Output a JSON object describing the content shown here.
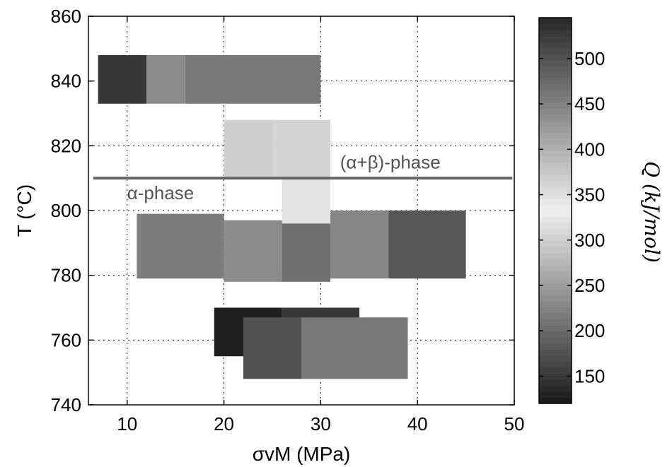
{
  "chart_data": {
    "type": "heatmap",
    "title": "",
    "xlabel": "σvM (MPa)",
    "ylabel": "T (°C)",
    "xlim": [
      6,
      50
    ],
    "ylim": [
      740,
      860
    ],
    "xticks": [
      10,
      20,
      30,
      40,
      50
    ],
    "yticks": [
      740,
      760,
      780,
      800,
      820,
      840,
      860
    ],
    "grid": true,
    "colorbar": {
      "label": "Q (kJ/mol)",
      "range": [
        120,
        545
      ],
      "ticks": [
        150,
        200,
        250,
        300,
        350,
        400,
        450,
        500
      ],
      "colormap": "grayscale"
    },
    "cells": [
      {
        "x0": 7,
        "x1": 12,
        "y0": 833,
        "y1": 848,
        "Q": 150
      },
      {
        "x0": 12,
        "x1": 16,
        "y0": 833,
        "y1": 848,
        "Q": 440
      },
      {
        "x0": 16,
        "x1": 30,
        "y0": 833,
        "y1": 848,
        "Q": 460
      },
      {
        "x0": 20,
        "x1": 25,
        "y0": 810,
        "y1": 828,
        "Q": 300
      },
      {
        "x0": 25,
        "x1": 31,
        "y0": 810,
        "y1": 828,
        "Q": 305
      },
      {
        "x0": 26,
        "x1": 31,
        "y0": 796,
        "y1": 810,
        "Q": 320
      },
      {
        "x0": 11,
        "x1": 20,
        "y0": 779,
        "y1": 799,
        "Q": 455
      },
      {
        "x0": 20,
        "x1": 26,
        "y0": 778,
        "y1": 797,
        "Q": 440
      },
      {
        "x0": 26,
        "x1": 31,
        "y0": 778,
        "y1": 796,
        "Q": 470
      },
      {
        "x0": 31,
        "x1": 37,
        "y0": 779,
        "y1": 800,
        "Q": 445
      },
      {
        "x0": 37,
        "x1": 45,
        "y0": 779,
        "y1": 800,
        "Q": 180
      },
      {
        "x0": 19,
        "x1": 26,
        "y0": 755,
        "y1": 770,
        "Q": 125
      },
      {
        "x0": 26,
        "x1": 34,
        "y0": 762,
        "y1": 770,
        "Q": 150
      },
      {
        "x0": 22,
        "x1": 28,
        "y0": 748,
        "y1": 767,
        "Q": 175
      },
      {
        "x0": 28,
        "x1": 39,
        "y0": 748,
        "y1": 767,
        "Q": 460
      }
    ],
    "reference_line": {
      "y": 810,
      "x0": 6.5,
      "x1": 49.8,
      "color": "#666666"
    },
    "annotations": [
      {
        "text": "(α+β)-phase",
        "x": 32,
        "y": 813
      },
      {
        "text": "α-phase",
        "x": 10,
        "y": 803.5
      }
    ]
  }
}
